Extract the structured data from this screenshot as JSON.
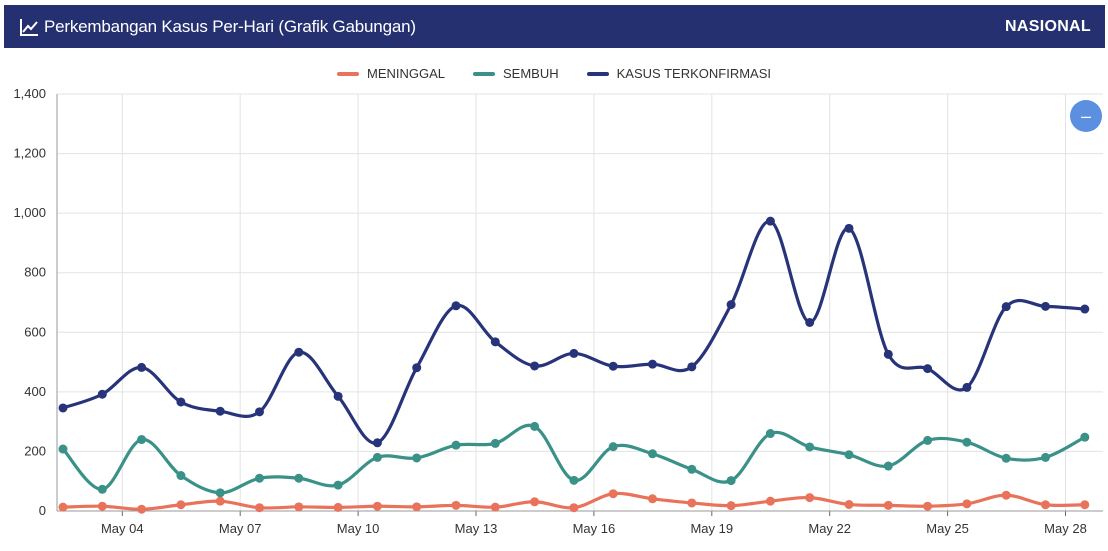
{
  "header": {
    "title": "Perkembangan Kasus Per-Hari (Grafik Gabungan)",
    "scope": "NASIONAL",
    "icon": "line-chart-icon"
  },
  "zoom_button": {
    "icon": "minus-icon",
    "symbol": "–"
  },
  "colors": {
    "header_bg": "#243070",
    "meninggal": "#e8735a",
    "sembuh": "#3a9188",
    "kasus": "#283479",
    "zoom_button": "#5b8fe0"
  },
  "chart_data": {
    "type": "line",
    "title": "",
    "xlabel": "",
    "ylabel": "",
    "ylim": [
      0,
      1400
    ],
    "yticks": [
      0,
      200,
      400,
      600,
      800,
      1000,
      1200,
      1400
    ],
    "ytick_labels": [
      "0",
      "200",
      "400",
      "600",
      "800",
      "1,000",
      "1,200",
      "1,400"
    ],
    "x": [
      "May 03",
      "May 04",
      "May 05",
      "May 06",
      "May 07",
      "May 08",
      "May 09",
      "May 10",
      "May 11",
      "May 12",
      "May 13",
      "May 14",
      "May 15",
      "May 16",
      "May 17",
      "May 18",
      "May 19",
      "May 20",
      "May 21",
      "May 22",
      "May 23",
      "May 24",
      "May 25",
      "May 26",
      "May 27",
      "May 28",
      "May 29"
    ],
    "xtick_labels": [
      "May 04",
      "May 07",
      "May 10",
      "May 13",
      "May 16",
      "May 19",
      "May 22",
      "May 25",
      "May 28"
    ],
    "grid": true,
    "legend_position": "top-center",
    "series": [
      {
        "name": "MENINGGAL",
        "color": "#e8735a",
        "values": [
          13,
          16,
          6,
          21,
          33,
          11,
          14,
          12,
          16,
          14,
          19,
          13,
          31,
          11,
          58,
          41,
          27,
          18,
          33,
          45,
          22,
          19,
          16,
          24,
          53,
          21,
          21
        ]
      },
      {
        "name": "SEMBUH",
        "color": "#3a9188",
        "values": [
          208,
          73,
          240,
          119,
          61,
          110,
          110,
          87,
          180,
          178,
          221,
          227,
          284,
          103,
          216,
          192,
          140,
          102,
          260,
          215,
          189,
          151,
          237,
          231,
          177,
          180,
          248
        ]
      },
      {
        "name": "KASUS TERKONFIRMASI",
        "color": "#283479",
        "values": [
          346,
          392,
          482,
          366,
          335,
          333,
          533,
          385,
          229,
          481,
          689,
          568,
          487,
          529,
          486,
          493,
          484,
          693,
          973,
          633,
          949,
          526,
          478,
          415,
          686,
          687,
          678
        ]
      }
    ]
  }
}
